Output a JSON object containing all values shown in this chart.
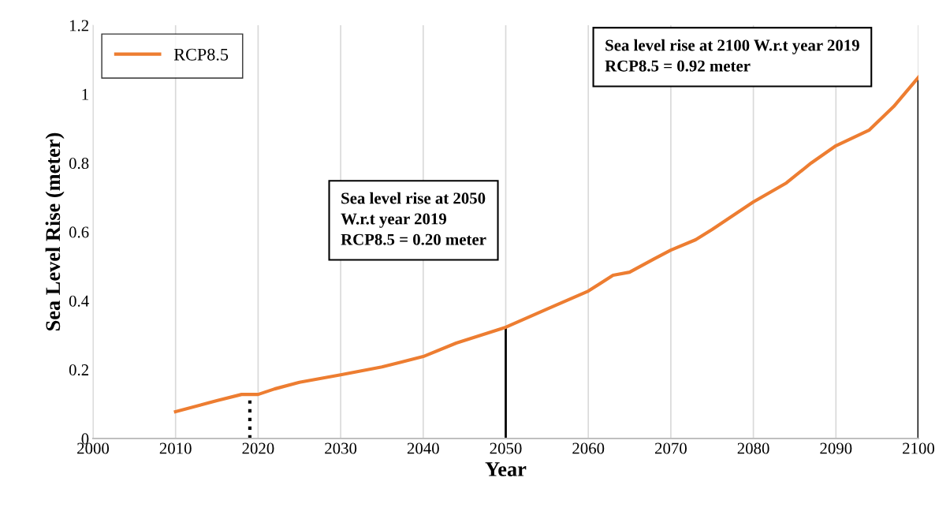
{
  "chart_data": {
    "type": "line",
    "xlabel": "Year",
    "ylabel": "Sea Level Rise (meter)",
    "x": [
      2010,
      2015,
      2018,
      2020,
      2022,
      2025,
      2030,
      2035,
      2040,
      2044,
      2050,
      2055,
      2060,
      2063,
      2065,
      2068,
      2070,
      2073,
      2075,
      2080,
      2084,
      2087,
      2090,
      2094,
      2097,
      2100
    ],
    "series": [
      {
        "name": "RCP8.5",
        "color": "#ed7d31",
        "values": [
          0.078,
          0.11,
          0.128,
          0.128,
          0.144,
          0.163,
          0.185,
          0.208,
          0.238,
          0.277,
          0.323,
          0.376,
          0.428,
          0.474,
          0.483,
          0.522,
          0.547,
          0.577,
          0.607,
          0.687,
          0.742,
          0.8,
          0.85,
          0.895,
          0.964,
          1.049
        ]
      }
    ],
    "xlim": [
      2000,
      2100
    ],
    "xticks": [
      2000,
      2010,
      2020,
      2030,
      2040,
      2050,
      2060,
      2070,
      2080,
      2090,
      2100
    ],
    "ylim": [
      0,
      1.2
    ],
    "yticks": [
      0,
      0.2,
      0.4,
      0.6,
      0.8,
      1,
      1.2
    ],
    "grid": "x",
    "legend": "top left",
    "marker": "none",
    "line_style": "solid",
    "ref_lines": [
      {
        "axis": "x",
        "value": 2019,
        "label": null,
        "color": "#000000",
        "line_style": "dotted"
      },
      {
        "axis": "x",
        "value": 2050,
        "label": null,
        "color": "#000000",
        "line_style": "solid"
      },
      {
        "axis": "x",
        "value": 2100,
        "label": null,
        "color": "#000000",
        "line_style": "solid"
      }
    ],
    "annotations": [
      "Sea level rise at 2050\nW.r.t year 2019\nRCP8.5 = 0.20 meter",
      "Sea level rise at 2100 W.r.t year 2019\nRCP8.5 = 0.92 meter"
    ]
  }
}
